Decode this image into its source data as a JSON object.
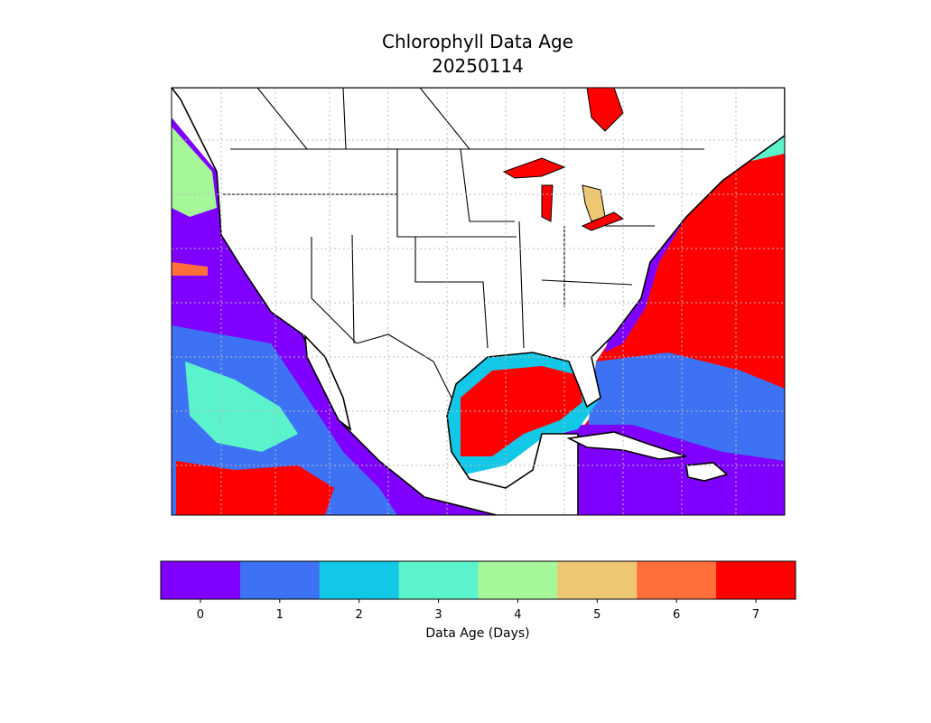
{
  "title": "Chlorophyll Data Age",
  "subtitle": "20250114",
  "colorbar": {
    "label": "Data Age (Days)",
    "ticks": [
      0,
      1,
      2,
      3,
      4,
      5,
      6,
      7
    ],
    "colors": [
      "#7f00ff",
      "#3d72f4",
      "#12c8e6",
      "#5af3cc",
      "#a6f69a",
      "#edc771",
      "#ff6e3b",
      "#ff0000"
    ]
  }
}
